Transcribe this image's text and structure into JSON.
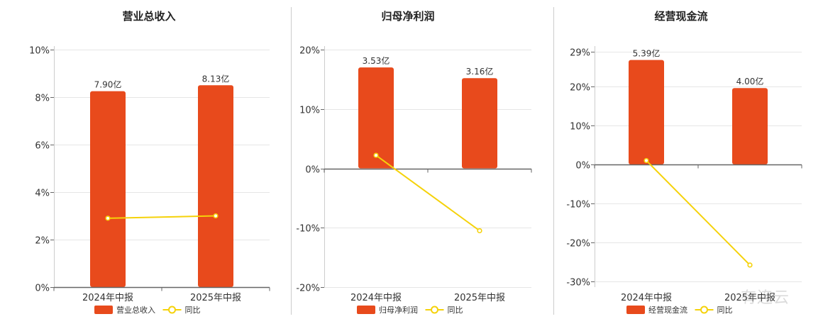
{
  "colors": {
    "bar": "#e84a1c",
    "line": "#f5d20a",
    "grid": "#e6e6e6",
    "axis": "#666666",
    "divider": "#cccccc"
  },
  "watermark": "有连云",
  "chart_data": [
    {
      "type": "bar",
      "title": "营业总收入",
      "categories": [
        "2024年中报",
        "2025年中报"
      ],
      "series": [
        {
          "name": "营业总收入",
          "type": "bar",
          "axis": "left",
          "values": [
            8.25,
            8.5
          ],
          "labels": [
            "7.90亿",
            "8.13亿"
          ]
        },
        {
          "name": "同比",
          "type": "line",
          "axis": "left",
          "values": [
            2.9,
            3.0
          ]
        }
      ],
      "yticks": [
        "0%",
        "2%",
        "4%",
        "6%",
        "8%",
        "10%"
      ],
      "ylim": [
        0,
        10
      ],
      "grid": true,
      "legend": "bottom"
    },
    {
      "type": "bar",
      "title": "归母净利润",
      "categories": [
        "2024年中报",
        "2025年中报"
      ],
      "series": [
        {
          "name": "归母净利润",
          "type": "bar",
          "axis": "left",
          "values": [
            17,
            15.2
          ],
          "labels": [
            "3.53亿",
            "3.16亿"
          ]
        },
        {
          "name": "同比",
          "type": "line",
          "axis": "left",
          "values": [
            2.2,
            -10.5
          ]
        }
      ],
      "yticks": [
        "-20%",
        "-10%",
        "0%",
        "10%",
        "20%"
      ],
      "ylim": [
        -20,
        20
      ],
      "grid": true,
      "legend": "bottom"
    },
    {
      "type": "bar",
      "title": "经营现金流",
      "categories": [
        "2024年中报",
        "2025年中报"
      ],
      "series": [
        {
          "name": "经营现金流",
          "type": "bar",
          "axis": "left",
          "values": [
            26.8,
            19.6
          ],
          "labels": [
            "5.39亿",
            "4.00亿"
          ]
        },
        {
          "name": "同比",
          "type": "line",
          "axis": "left",
          "values": [
            1.0,
            -25.8
          ]
        }
      ],
      "yticks": [
        "-30%",
        "-20%",
        "-10%",
        "0%",
        "10%",
        "20%",
        "29%"
      ],
      "ytick_values": [
        -30,
        -20,
        -10,
        0,
        10,
        20,
        29
      ],
      "ylim": [
        -30.5,
        29
      ],
      "grid": true,
      "legend": "bottom"
    }
  ]
}
